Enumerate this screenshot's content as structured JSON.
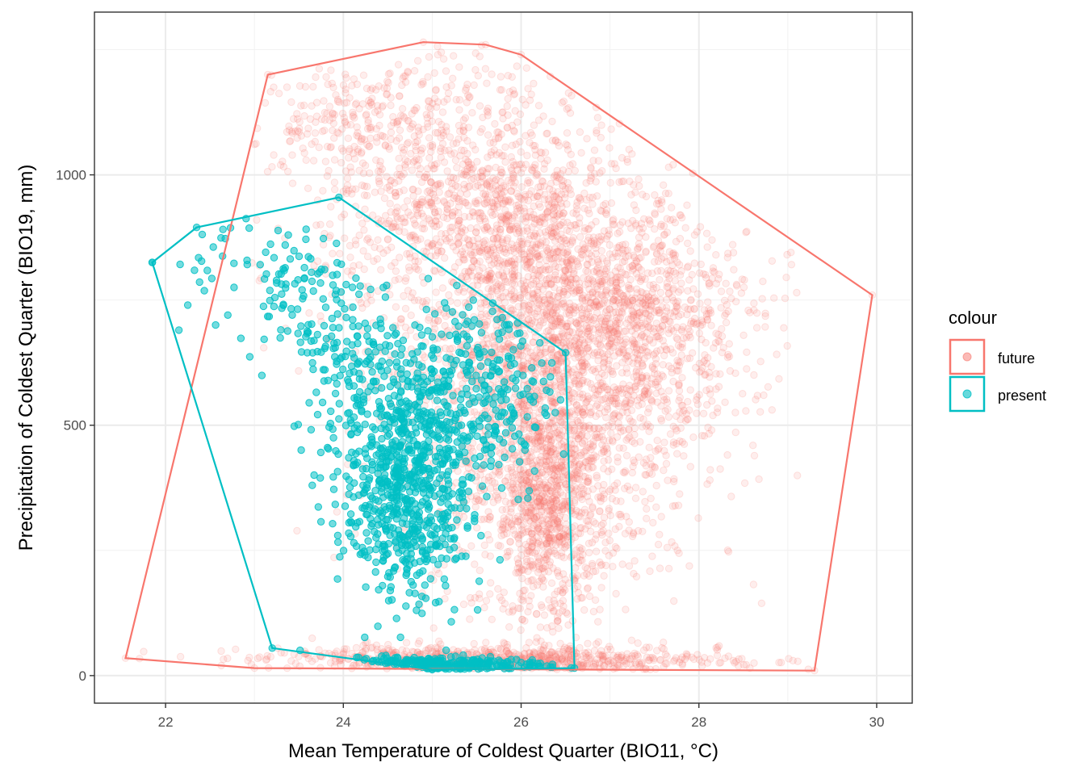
{
  "chart_data": {
    "type": "scatter",
    "title": "",
    "xlabel": "Mean Temperature of Coldest Quarter (BIO11, °C)",
    "ylabel": "Precipitation of Coldest Quarter (BIO19, mm)",
    "xlim": [
      21.2,
      30.4
    ],
    "ylim": [
      -55,
      1325
    ],
    "x_ticks": [
      22,
      24,
      26,
      28,
      30
    ],
    "y_ticks": [
      0,
      500,
      1000
    ],
    "grid": true,
    "legend": {
      "title": "colour",
      "position": "right",
      "entries": [
        {
          "label": "future",
          "color": "#F8766D"
        },
        {
          "label": "present",
          "color": "#00BFC4"
        }
      ]
    },
    "series": [
      {
        "name": "future",
        "color": "#F8766D",
        "point_alpha": 0.12,
        "hull": [
          [
            21.55,
            35
          ],
          [
            23.15,
            1200
          ],
          [
            24.9,
            1265
          ],
          [
            25.6,
            1260
          ],
          [
            26.0,
            1240
          ],
          [
            29.95,
            760
          ],
          [
            29.3,
            10
          ],
          [
            23.0,
            15
          ]
        ],
        "clusters": [
          {
            "x_mean": 26.3,
            "x_sd": 0.85,
            "y_mean": 620,
            "y_sd": 220,
            "n": 2600
          },
          {
            "x_mean": 25.4,
            "x_sd": 0.85,
            "y_mean": 930,
            "y_sd": 120,
            "n": 900
          },
          {
            "x_mean": 27.3,
            "x_sd": 0.7,
            "y_mean": 720,
            "y_sd": 90,
            "n": 600
          },
          {
            "x_mean": 26.3,
            "x_sd": 0.3,
            "y_mean": 330,
            "y_sd": 110,
            "n": 700
          },
          {
            "x_mean": 25.7,
            "x_sd": 1.3,
            "y_mean": 30,
            "y_sd": 15,
            "n": 700
          },
          {
            "x_mean": 24.2,
            "x_sd": 0.7,
            "y_mean": 1120,
            "y_sd": 70,
            "n": 250
          }
        ]
      },
      {
        "name": "present",
        "color": "#00BFC4",
        "point_alpha": 0.55,
        "hull": [
          [
            21.85,
            825
          ],
          [
            22.35,
            895
          ],
          [
            23.95,
            955
          ],
          [
            26.5,
            645
          ],
          [
            26.6,
            15
          ],
          [
            25.0,
            12
          ],
          [
            23.2,
            55
          ]
        ],
        "clusters": [
          {
            "x_mean": 24.7,
            "x_sd": 0.35,
            "y_mean": 380,
            "y_sd": 110,
            "n": 700
          },
          {
            "x_mean": 25.4,
            "x_sd": 0.5,
            "y_mean": 560,
            "y_sd": 110,
            "n": 350
          },
          {
            "x_mean": 24.1,
            "x_sd": 0.35,
            "y_mean": 640,
            "y_sd": 90,
            "n": 150
          },
          {
            "x_mean": 23.4,
            "x_sd": 0.3,
            "y_mean": 780,
            "y_sd": 60,
            "n": 70
          },
          {
            "x_mean": 22.8,
            "x_sd": 0.4,
            "y_mean": 830,
            "y_sd": 50,
            "n": 25
          },
          {
            "x_mean": 24.9,
            "x_sd": 0.7,
            "y_mean": 22,
            "y_sd": 8,
            "n": 220
          }
        ],
        "outliers": [
          [
            21.85,
            825
          ],
          [
            22.15,
            690
          ],
          [
            22.25,
            740
          ],
          [
            22.7,
            720
          ],
          [
            23.65,
            380
          ]
        ]
      }
    ]
  }
}
